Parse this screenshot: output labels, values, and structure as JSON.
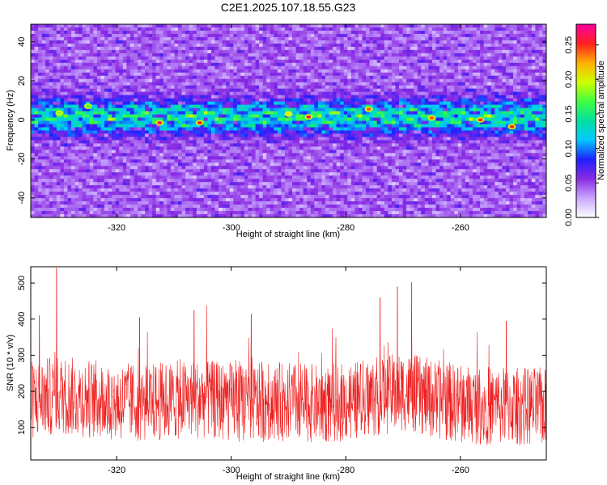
{
  "title": "C2E1.2025.107.18.55.G23",
  "chart_data": [
    {
      "type": "heatmap",
      "title": "C2E1.2025.107.18.55.G23",
      "xlabel": "Height of straight line (km)",
      "ylabel": "Frequency (Hz)",
      "xlim": [
        -335,
        -245
      ],
      "ylim": [
        -50,
        49
      ],
      "xticks": [
        -320,
        -300,
        -280,
        -260
      ],
      "yticks": [
        -40,
        -20,
        0,
        20,
        40
      ],
      "colorbar": {
        "label": "Normalized spectral amplitude",
        "range": [
          0,
          0.28
        ],
        "ticks": [
          0.0,
          0.05,
          0.1,
          0.15,
          0.2,
          0.25
        ],
        "colormap": [
          "#ffffff",
          "#c9a6ff",
          "#8a2be2",
          "#2020ff",
          "#00c8ff",
          "#00e0a0",
          "#40ff40",
          "#d0ff00",
          "#ffb000",
          "#ff2020",
          "#ff00a0"
        ]
      },
      "features": {
        "band_center_hz": 1.5,
        "band_halfwidth_hz": 8,
        "peak_amplitudes": [
          {
            "x": -312.5,
            "y": -1.5,
            "v": 0.27
          },
          {
            "x": -305.5,
            "y": -1.5,
            "v": 0.26
          },
          {
            "x": -286.5,
            "y": 1.5,
            "v": 0.26
          },
          {
            "x": -276.0,
            "y": 5.5,
            "v": 0.24
          },
          {
            "x": -265.0,
            "y": 1.0,
            "v": 0.24
          },
          {
            "x": -256.5,
            "y": 0.0,
            "v": 0.25
          },
          {
            "x": -251.0,
            "y": -3.5,
            "v": 0.25
          },
          {
            "x": -290.0,
            "y": 3.0,
            "v": 0.2
          },
          {
            "x": -330.0,
            "y": 3.5,
            "v": 0.18
          },
          {
            "x": -325.0,
            "y": 7.0,
            "v": 0.17
          }
        ]
      }
    },
    {
      "type": "line",
      "xlabel": "Height of straight line (km)",
      "ylabel": "SNR (10 * v/v)",
      "xlim": [
        -335,
        -245
      ],
      "ylim": [
        10,
        545
      ],
      "xticks": [
        -320,
        -300,
        -280,
        -260
      ],
      "yticks": [
        100,
        200,
        300,
        400,
        500
      ],
      "color": "#ee2020",
      "series_stats": {
        "mean": 170,
        "typical_min": 60,
        "typical_max": 330
      },
      "x": [
        -335.0,
        -330.0,
        -325.0,
        -320.0,
        -315.0,
        -310.0,
        -305.0,
        -300.0,
        -295.0,
        -290.0,
        -285.0,
        -280.0,
        -275.0,
        -270.0,
        -265.0,
        -260.0,
        -255.0,
        -250.0,
        -245.0
      ],
      "y": [
        175,
        190,
        180,
        172,
        168,
        175,
        180,
        170,
        168,
        172,
        165,
        170,
        185,
        200,
        180,
        165,
        160,
        160,
        155
      ],
      "peaks": [
        {
          "x": -330.5,
          "y": 542
        },
        {
          "x": -333.5,
          "y": 410
        },
        {
          "x": -306.5,
          "y": 425
        },
        {
          "x": -271.0,
          "y": 490
        },
        {
          "x": -268.5,
          "y": 502
        },
        {
          "x": -274.0,
          "y": 460
        },
        {
          "x": -296.5,
          "y": 415
        },
        {
          "x": -252.0,
          "y": 395
        },
        {
          "x": -316.0,
          "y": 405
        }
      ]
    }
  ]
}
